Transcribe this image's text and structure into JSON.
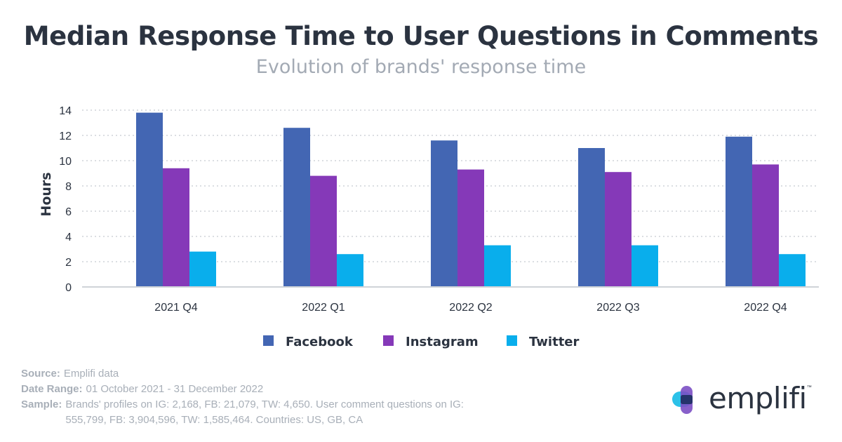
{
  "header": {
    "title": "Median Response Time to User Questions in Comments",
    "subtitle": "Evolution of brands' response time"
  },
  "chart_data": {
    "type": "bar",
    "categories": [
      "2021 Q4",
      "2022 Q1",
      "2022 Q2",
      "2022 Q3",
      "2022 Q4"
    ],
    "series": [
      {
        "name": "Facebook",
        "color": "#4366b3",
        "values": [
          13.8,
          12.6,
          11.6,
          11.0,
          11.9
        ]
      },
      {
        "name": "Instagram",
        "color": "#8539b8",
        "values": [
          9.4,
          8.8,
          9.3,
          9.1,
          9.7
        ]
      },
      {
        "name": "Twitter",
        "color": "#09aeec",
        "values": [
          2.8,
          2.6,
          3.3,
          3.3,
          2.6
        ]
      }
    ],
    "ylabel": "Hours",
    "xlabel": "",
    "ylim": [
      0,
      14
    ],
    "yticks": [
      0,
      2,
      4,
      6,
      8,
      10,
      12,
      14
    ],
    "grid": true,
    "legend_position": "bottom"
  },
  "footer": {
    "source_label": "Source:",
    "source_value": "Emplifi data",
    "date_label": "Date Range:",
    "date_value": "01 October 2021 - 31 December 2022",
    "sample_label": "Sample:",
    "sample_value": "Brands' profiles on IG: 2,168, FB: 21,079, TW: 4,650. User comment questions on IG: 555,799, FB: 3,904,596, TW: 1,585,464. Countries: US, GB, CA"
  },
  "logo": {
    "word": "emplifi",
    "tm": "™",
    "colors": {
      "cyan": "#2cc1e8",
      "purple": "#7b4fc4",
      "navy": "#25336b"
    }
  }
}
